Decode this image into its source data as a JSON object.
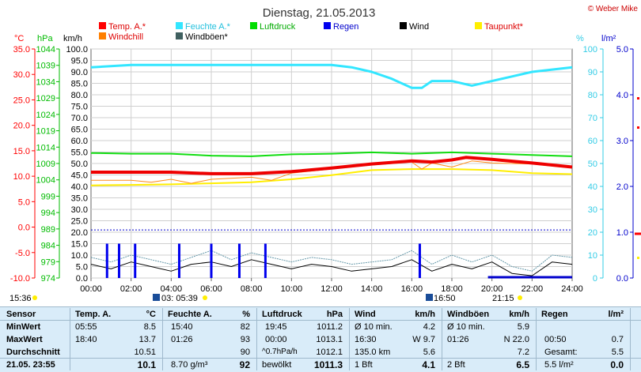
{
  "header": {
    "title": "Dienstag, 21.05.2013",
    "copyright": "© Weber Mike"
  },
  "legend": [
    {
      "label": "Temp. A.*",
      "color": "#ff0000"
    },
    {
      "label": "Feuchte A.*",
      "color": "#33e6ff"
    },
    {
      "label": "Luftdruck",
      "color": "#00dd00"
    },
    {
      "label": "Regen",
      "color": "#0000ee"
    },
    {
      "label": "Wind",
      "color": "#000000"
    },
    {
      "label": "Taupunkt*",
      "color": "#ffee00"
    },
    {
      "label": "Windchill",
      "color": "#ff7f00"
    },
    {
      "label": "Windböen*",
      "color": "#406060"
    }
  ],
  "axis_labels": {
    "temp_unit": "°C",
    "pressure_unit": "hPa",
    "wind_unit": "km/h",
    "humidity_unit": "%",
    "rain_unit": "l/m²"
  },
  "chart_data": {
    "type": "line",
    "title": "Dienstag, 21.05.2013",
    "x": [
      "00:00",
      "02:00",
      "04:00",
      "06:00",
      "08:00",
      "10:00",
      "12:00",
      "14:00",
      "16:00",
      "18:00",
      "20:00",
      "22:00",
      "24:00"
    ],
    "axes": {
      "temperature_c": {
        "range": [
          -10,
          35
        ],
        "ticks": [
          "35.0",
          "30.0",
          "25.0",
          "20.0",
          "15.0",
          "10.0",
          "5.0",
          "0.0",
          "-5.0",
          "-10.0"
        ]
      },
      "pressure_hpa": {
        "range": [
          974,
          1044
        ],
        "ticks": [
          "1044",
          "1039",
          "1034",
          "1029",
          "1024",
          "1019",
          "1014",
          "1009",
          "1004",
          "999",
          "994",
          "989",
          "984",
          "979",
          "974"
        ]
      },
      "wind_kmh": {
        "range": [
          0,
          100
        ],
        "ticks": [
          "100.0",
          "95.0",
          "90.0",
          "85.0",
          "80.0",
          "75.0",
          "70.0",
          "65.0",
          "60.0",
          "55.0",
          "50.0",
          "45.0",
          "40.0",
          "35.0",
          "30.0",
          "25.0",
          "20.0",
          "15.0",
          "10.0",
          "5.0",
          "0.0"
        ]
      },
      "humidity_pct": {
        "range": [
          0,
          100
        ],
        "ticks": [
          "100",
          "90",
          "80",
          "70",
          "60",
          "50",
          "40",
          "30",
          "20",
          "10",
          "0"
        ]
      },
      "rain_lm2": {
        "range": [
          0,
          5
        ],
        "ticks": [
          "5.0",
          "4.0",
          "3.0",
          "2.0",
          "1.0",
          "0.0"
        ]
      }
    },
    "series": [
      {
        "name": "Temp. A.*",
        "axis": "temperature_c",
        "x": [
          0,
          2,
          4,
          6,
          8,
          10,
          12,
          14,
          16,
          17,
          18,
          18.7,
          20,
          22,
          24
        ],
        "values": [
          10.8,
          10.8,
          10.8,
          10.5,
          10.5,
          10.9,
          11.6,
          12.4,
          13.0,
          12.8,
          13.2,
          13.7,
          13.3,
          12.6,
          11.8
        ]
      },
      {
        "name": "Feuchte A.*",
        "axis": "humidity_pct",
        "x": [
          0,
          2,
          4,
          6,
          8,
          10,
          12,
          13,
          14,
          15,
          16,
          16.5,
          17,
          18,
          19,
          20,
          21,
          22,
          24
        ],
        "values": [
          92,
          93,
          93,
          93,
          93,
          93,
          93,
          92,
          90,
          87,
          83,
          83,
          86,
          86,
          84,
          86,
          88,
          90,
          92
        ]
      },
      {
        "name": "Luftdruck",
        "axis": "pressure_hpa",
        "x": [
          0,
          2,
          4,
          6,
          8,
          10,
          12,
          14,
          16,
          18,
          20,
          22,
          24
        ],
        "values": [
          1012.2,
          1012.0,
          1012.0,
          1011.4,
          1011.2,
          1011.8,
          1012.0,
          1012.4,
          1012.0,
          1012.4,
          1012.0,
          1011.6,
          1011.2
        ]
      },
      {
        "name": "Taupunkt*",
        "axis": "temperature_c",
        "x": [
          0,
          2,
          4,
          6,
          8,
          10,
          12,
          14,
          16,
          18,
          20,
          22,
          24
        ],
        "values": [
          8.2,
          8.3,
          8.4,
          8.6,
          8.8,
          9.4,
          10.2,
          11.2,
          11.4,
          11.4,
          11.2,
          10.6,
          10.4
        ]
      },
      {
        "name": "Windchill",
        "axis": "temperature_c",
        "x": [
          0,
          2,
          3,
          4,
          5,
          6,
          8,
          9,
          10,
          14,
          16,
          16.5,
          17,
          18,
          19,
          20,
          22,
          24
        ],
        "values": [
          9.2,
          9.2,
          8.8,
          9.4,
          8.6,
          9.4,
          9.8,
          9.2,
          10.6,
          12.2,
          12.8,
          11.4,
          12.6,
          11.8,
          13.0,
          12.6,
          12.4,
          11.6
        ]
      },
      {
        "name": "Wind",
        "axis": "wind_kmh",
        "x": [
          0,
          1,
          2,
          3,
          4,
          5,
          6,
          7,
          8,
          9,
          10,
          11,
          12,
          13,
          14,
          15,
          16,
          17,
          18,
          19,
          20,
          21,
          22,
          23,
          24
        ],
        "values": [
          6,
          4,
          7,
          5,
          3,
          6,
          7,
          5,
          8,
          6,
          4,
          6,
          5,
          3,
          4,
          5,
          8,
          3,
          6,
          4,
          7,
          2,
          1,
          7,
          6
        ]
      },
      {
        "name": "Windböen*",
        "axis": "wind_kmh",
        "x": [
          0,
          1,
          2,
          3,
          4,
          5,
          6,
          7,
          8,
          9,
          10,
          11,
          12,
          13,
          14,
          15,
          16,
          17,
          18,
          19,
          20,
          21,
          22,
          23,
          24
        ],
        "values": [
          9,
          7,
          10,
          8,
          6,
          9,
          12,
          8,
          11,
          9,
          7,
          9,
          8,
          6,
          7,
          8,
          12,
          6,
          10,
          7,
          10,
          5,
          3,
          10,
          9
        ]
      }
    ],
    "rain_bars": {
      "axis": "wind_kmh",
      "x": [
        0.8,
        1.4,
        2.2,
        4.4,
        6.0,
        7.4,
        8.7,
        16.4
      ],
      "values": [
        15,
        15,
        15,
        15,
        15,
        15,
        15,
        15
      ]
    },
    "rain_total_line": {
      "name": "Regen",
      "axis": "rain_lm2",
      "x": [
        0,
        24
      ],
      "values": [
        1.05,
        1.05
      ]
    },
    "grid": true,
    "legend_position": "top"
  },
  "sun": {
    "sunrise_label": "03: 05:39",
    "noon_label": "16:50",
    "sunset_label": "21:15",
    "left_time": "15:36"
  },
  "table": {
    "sensor": {
      "header": "Sensor",
      "rows": [
        "MinWert",
        "MaxWert",
        "Durchschnitt",
        "21.05. 23:55"
      ]
    },
    "temp": {
      "header": "Temp. A.",
      "unit": "°C",
      "rows": [
        [
          "05:55",
          "8.5"
        ],
        [
          "18:40",
          "13.7"
        ],
        [
          "",
          "10.51"
        ],
        [
          "",
          "10.1"
        ]
      ]
    },
    "feuchte": {
      "header": "Feuchte A.",
      "unit": "%",
      "rows": [
        [
          "15:40",
          "82"
        ],
        [
          "01:26",
          "93"
        ],
        [
          "",
          "90"
        ],
        [
          "8.70 g/m³",
          "92"
        ]
      ]
    },
    "luftdruck": {
      "header": "Luftdruck",
      "unit": "hPa",
      "rows": [
        [
          "19:45",
          "1011.2"
        ],
        [
          "00:00",
          "1013.1"
        ],
        [
          "^0.7hPa/h",
          "1012.1"
        ],
        [
          "bewölkt",
          "1011.3"
        ]
      ]
    },
    "wind": {
      "header": "Wind",
      "unit": "km/h",
      "rows": [
        [
          "Ø 10 min.",
          "4.2"
        ],
        [
          "16:30",
          "W 9.7"
        ],
        [
          "135.0 km",
          "5.6"
        ],
        [
          "1 Bft",
          "4.1"
        ]
      ]
    },
    "windboen": {
      "header": "Windböen",
      "unit": "km/h",
      "rows": [
        [
          "Ø 10 min.",
          "5.9"
        ],
        [
          "01:26",
          "N 22.0"
        ],
        [
          "",
          "7.2"
        ],
        [
          "2 Bft",
          "6.5"
        ]
      ]
    },
    "regen": {
      "header": "Regen",
      "unit": "l/m²",
      "rows": [
        [
          "",
          ""
        ],
        [
          "00:50",
          "0.7"
        ],
        [
          "Gesamt:",
          "5.5"
        ],
        [
          "5.5 l/m²",
          "0.0"
        ]
      ]
    }
  }
}
